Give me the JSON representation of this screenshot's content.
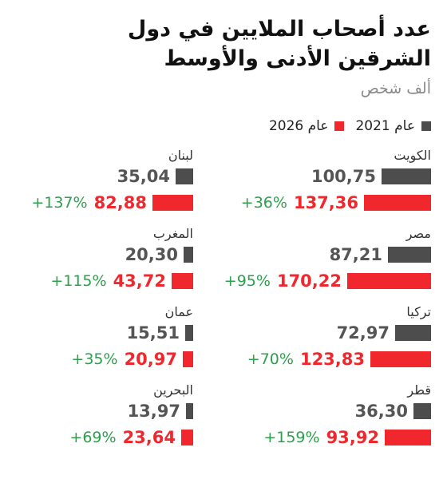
{
  "colors": {
    "y2021": "#4d4d4d",
    "y2026": "#f0282d",
    "change": "#2aa14a"
  },
  "chart_data": {
    "type": "bar",
    "title": "عدد أصحاب الملايين في دول الشرقين الأدنى والأوسط",
    "subtitle": "ألف شخص",
    "legend": [
      "عام 2021",
      "عام 2026"
    ],
    "series_names": [
      "عام 2021",
      "عام 2026"
    ],
    "categories": [
      "الكويت",
      "مصر",
      "تركيا",
      "قطر",
      "لبنان",
      "المغرب",
      "عمان",
      "البحرين"
    ],
    "panels": [
      {
        "country": "الكويت",
        "v2021": 100.75,
        "v2026": 137.36,
        "label2021": "100,75",
        "label2026": "137,36",
        "change": "+36%"
      },
      {
        "country": "مصر",
        "v2021": 87.21,
        "v2026": 170.22,
        "label2021": "87,21",
        "label2026": "170,22",
        "change": "+95%"
      },
      {
        "country": "تركيا",
        "v2021": 72.97,
        "v2026": 123.83,
        "label2021": "72,97",
        "label2026": "123,83",
        "change": "+70%"
      },
      {
        "country": "قطر",
        "v2021": 36.3,
        "v2026": 93.92,
        "label2021": "36,30",
        "label2026": "93,92",
        "change": "+159%"
      },
      {
        "country": "لبنان",
        "v2021": 35.04,
        "v2026": 82.88,
        "label2021": "35,04",
        "label2026": "82,88",
        "change": "+137%"
      },
      {
        "country": "المغرب",
        "v2021": 20.3,
        "v2026": 43.72,
        "label2021": "20,30",
        "label2026": "43,72",
        "change": "+115%"
      },
      {
        "country": "عمان",
        "v2021": 15.51,
        "v2026": 20.97,
        "label2021": "15,51",
        "label2026": "20,97",
        "change": "+35%"
      },
      {
        "country": "البحرين",
        "v2021": 13.97,
        "v2026": 23.64,
        "label2021": "13,97",
        "label2026": "23,64",
        "change": "+69%"
      }
    ]
  }
}
